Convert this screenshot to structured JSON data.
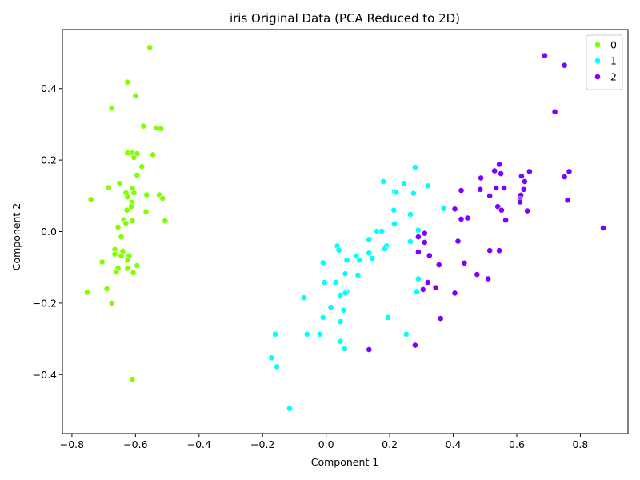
{
  "chart_data": {
    "type": "scatter",
    "title": "iris Original Data (PCA Reduced to 2D)",
    "xlabel": "Component 1",
    "ylabel": "Component 2",
    "xlim": [
      -0.83,
      0.95
    ],
    "ylim": [
      -0.565,
      0.565
    ],
    "xticks": [
      -0.8,
      -0.6,
      -0.4,
      -0.2,
      0.0,
      0.2,
      0.4,
      0.6,
      0.8
    ],
    "yticks": [
      -0.4,
      -0.2,
      0.0,
      0.2,
      0.4
    ],
    "xtick_labels": [
      "−0.8",
      "−0.6",
      "−0.4",
      "−0.2",
      "0.0",
      "0.2",
      "0.4",
      "0.6",
      "0.8"
    ],
    "ytick_labels": [
      "−0.4",
      "−0.2",
      "0.0",
      "0.2",
      "0.4"
    ],
    "grid": false,
    "legend_position": "top-right",
    "series": [
      {
        "name": "0",
        "color": "#80ff00",
        "points": [
          [
            -0.555,
            0.515
          ],
          [
            -0.625,
            0.418
          ],
          [
            -0.6,
            0.38
          ],
          [
            -0.675,
            0.345
          ],
          [
            -0.575,
            0.295
          ],
          [
            -0.535,
            0.29
          ],
          [
            -0.52,
            0.288
          ],
          [
            -0.625,
            0.22
          ],
          [
            -0.61,
            0.22
          ],
          [
            -0.595,
            0.218
          ],
          [
            -0.545,
            0.215
          ],
          [
            -0.605,
            0.207
          ],
          [
            -0.58,
            0.182
          ],
          [
            -0.595,
            0.158
          ],
          [
            -0.65,
            0.135
          ],
          [
            -0.685,
            0.123
          ],
          [
            -0.61,
            0.12
          ],
          [
            -0.63,
            0.108
          ],
          [
            -0.605,
            0.108
          ],
          [
            -0.565,
            0.103
          ],
          [
            -0.525,
            0.103
          ],
          [
            -0.625,
            0.097
          ],
          [
            -0.74,
            0.09
          ],
          [
            -0.515,
            0.093
          ],
          [
            -0.612,
            0.082
          ],
          [
            -0.613,
            0.07
          ],
          [
            -0.627,
            0.06
          ],
          [
            -0.567,
            0.056
          ],
          [
            -0.637,
            0.033
          ],
          [
            -0.61,
            0.03
          ],
          [
            -0.507,
            0.03
          ],
          [
            -0.63,
            0.023
          ],
          [
            -0.655,
            0.012
          ],
          [
            -0.645,
            -0.015
          ],
          [
            -0.665,
            -0.05
          ],
          [
            -0.64,
            -0.055
          ],
          [
            -0.665,
            -0.063
          ],
          [
            -0.645,
            -0.068
          ],
          [
            -0.62,
            -0.068
          ],
          [
            -0.625,
            -0.08
          ],
          [
            -0.705,
            -0.085
          ],
          [
            -0.595,
            -0.095
          ],
          [
            -0.655,
            -0.103
          ],
          [
            -0.625,
            -0.103
          ],
          [
            -0.66,
            -0.113
          ],
          [
            -0.607,
            -0.115
          ],
          [
            -0.69,
            -0.16
          ],
          [
            -0.752,
            -0.17
          ],
          [
            -0.675,
            -0.2
          ],
          [
            -0.61,
            -0.413
          ]
        ]
      },
      {
        "name": "1",
        "color": "#00ffff",
        "points": [
          [
            0.28,
            0.18
          ],
          [
            0.18,
            0.14
          ],
          [
            0.245,
            0.135
          ],
          [
            0.32,
            0.128
          ],
          [
            0.215,
            0.112
          ],
          [
            0.22,
            0.11
          ],
          [
            0.275,
            0.107
          ],
          [
            0.37,
            0.065
          ],
          [
            0.213,
            0.06
          ],
          [
            0.265,
            0.048
          ],
          [
            0.215,
            0.022
          ],
          [
            0.29,
            0.004
          ],
          [
            0.16,
            0.001
          ],
          [
            0.175,
            0.001
          ],
          [
            0.135,
            -0.022
          ],
          [
            0.265,
            -0.028
          ],
          [
            0.19,
            -0.04
          ],
          [
            0.185,
            -0.048
          ],
          [
            0.035,
            -0.04
          ],
          [
            0.04,
            -0.052
          ],
          [
            0.135,
            -0.06
          ],
          [
            0.095,
            -0.068
          ],
          [
            0.145,
            -0.075
          ],
          [
            0.065,
            -0.08
          ],
          [
            0.105,
            -0.08
          ],
          [
            -0.01,
            -0.087
          ],
          [
            0.06,
            -0.118
          ],
          [
            0.1,
            -0.122
          ],
          [
            0.29,
            -0.132
          ],
          [
            -0.005,
            -0.142
          ],
          [
            0.03,
            -0.142
          ],
          [
            0.065,
            -0.168
          ],
          [
            0.285,
            -0.168
          ],
          [
            0.06,
            -0.172
          ],
          [
            0.045,
            -0.178
          ],
          [
            -0.07,
            -0.185
          ],
          [
            0.015,
            -0.212
          ],
          [
            0.055,
            -0.22
          ],
          [
            0.195,
            -0.24
          ],
          [
            -0.01,
            -0.24
          ],
          [
            0.045,
            -0.252
          ],
          [
            -0.16,
            -0.287
          ],
          [
            -0.06,
            -0.287
          ],
          [
            -0.02,
            -0.287
          ],
          [
            0.252,
            -0.287
          ],
          [
            0.045,
            -0.307
          ],
          [
            0.058,
            -0.328
          ],
          [
            -0.172,
            -0.353
          ],
          [
            -0.155,
            -0.378
          ],
          [
            -0.115,
            -0.495
          ]
        ]
      },
      {
        "name": "2",
        "color": "#7f00ff",
        "points": [
          [
            0.688,
            0.492
          ],
          [
            0.75,
            0.465
          ],
          [
            0.72,
            0.335
          ],
          [
            0.545,
            0.188
          ],
          [
            0.53,
            0.17
          ],
          [
            0.64,
            0.168
          ],
          [
            0.765,
            0.168
          ],
          [
            0.55,
            0.162
          ],
          [
            0.615,
            0.155
          ],
          [
            0.75,
            0.153
          ],
          [
            0.487,
            0.15
          ],
          [
            0.625,
            0.14
          ],
          [
            0.535,
            0.122
          ],
          [
            0.56,
            0.122
          ],
          [
            0.485,
            0.118
          ],
          [
            0.622,
            0.118
          ],
          [
            0.425,
            0.115
          ],
          [
            0.613,
            0.102
          ],
          [
            0.515,
            0.1
          ],
          [
            0.61,
            0.09
          ],
          [
            0.76,
            0.088
          ],
          [
            0.61,
            0.083
          ],
          [
            0.54,
            0.07
          ],
          [
            0.405,
            0.063
          ],
          [
            0.552,
            0.06
          ],
          [
            0.633,
            0.058
          ],
          [
            0.445,
            0.038
          ],
          [
            0.425,
            0.035
          ],
          [
            0.565,
            0.032
          ],
          [
            0.872,
            0.01
          ],
          [
            0.31,
            -0.005
          ],
          [
            0.29,
            -0.015
          ],
          [
            0.415,
            -0.027
          ],
          [
            0.31,
            -0.03
          ],
          [
            0.515,
            -0.053
          ],
          [
            0.545,
            -0.053
          ],
          [
            0.29,
            -0.057
          ],
          [
            0.325,
            -0.067
          ],
          [
            0.435,
            -0.088
          ],
          [
            0.355,
            -0.093
          ],
          [
            0.475,
            -0.12
          ],
          [
            0.51,
            -0.132
          ],
          [
            0.32,
            -0.142
          ],
          [
            0.345,
            -0.157
          ],
          [
            0.305,
            -0.162
          ],
          [
            0.405,
            -0.172
          ],
          [
            0.36,
            -0.243
          ],
          [
            0.28,
            -0.318
          ],
          [
            0.135,
            -0.33
          ]
        ]
      }
    ]
  }
}
